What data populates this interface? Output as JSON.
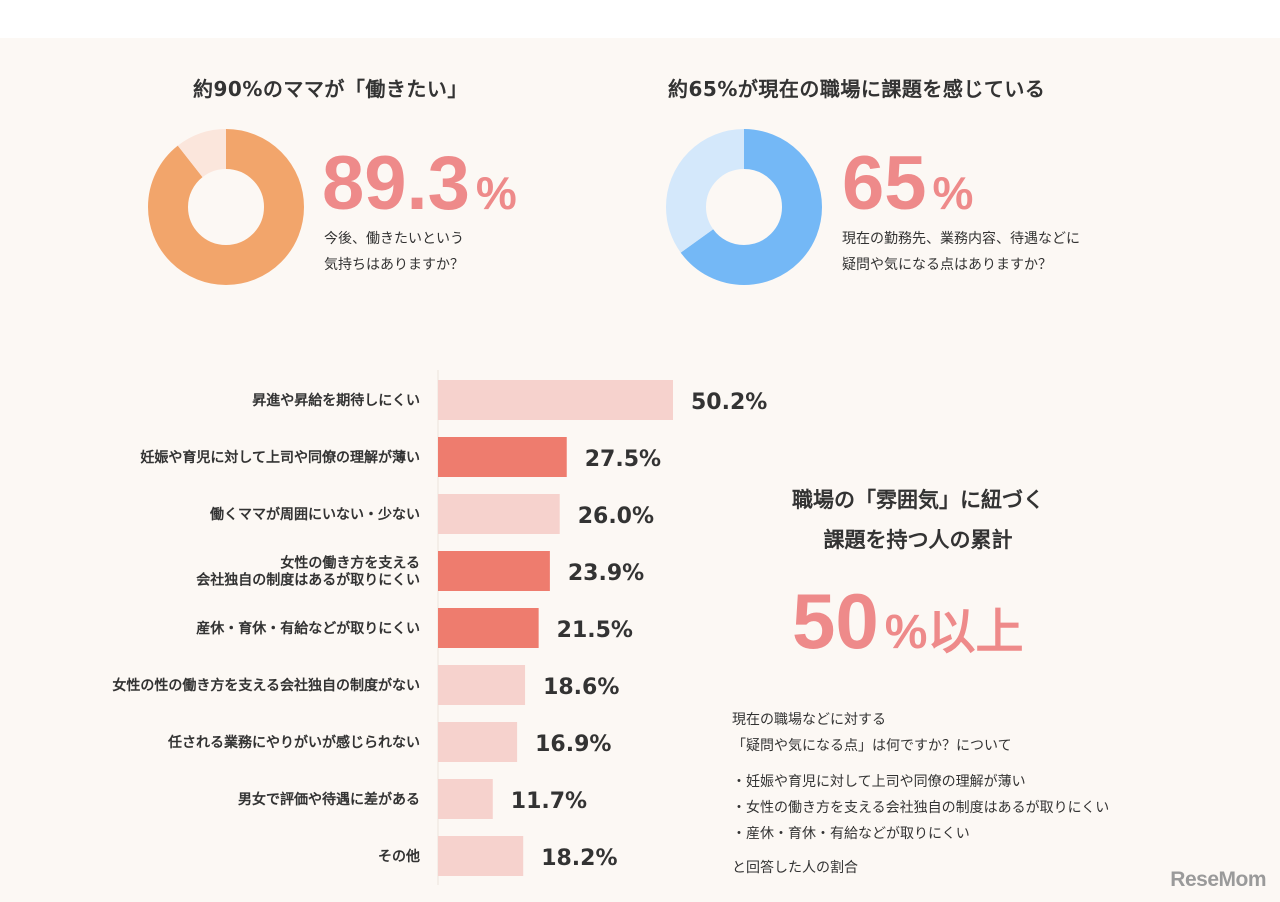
{
  "donut_left": {
    "title": "約90%のママが「働きたい」",
    "value_text": "89.3",
    "unit": "%",
    "desc_lines": [
      "今後、働きたいという",
      "気持ちはありますか？"
    ]
  },
  "donut_right": {
    "title": "約65%が現在の職場に課題を感じている",
    "value_text": "65",
    "unit": "%",
    "desc_lines": [
      "現在の勤務先、業務内容、待遇などに",
      "疑問や気になる点はありますか？"
    ]
  },
  "summary": {
    "title_lines": [
      "職場の「雰囲気」に紐づく",
      "課題を持つ人の累計"
    ],
    "big_value": "50",
    "big_unit": "%",
    "big_suffix": "以上",
    "note_lines": [
      "現在の職場などに対する",
      "「疑問や気になる点」は何ですか？について"
    ],
    "bullets": [
      "・妊娠や育児に対して上司や同僚の理解が薄い",
      "・女性の働き方を支える会社独自の制度はあるが取りにくい",
      "・産休・育休・有給などが取りにくい"
    ],
    "footer": "と回答した人の割合"
  },
  "logo": "ReseMom",
  "colors": {
    "orange": "#f2a56b",
    "orange_light": "#fbe6dc",
    "blue": "#74b8f6",
    "blue_light": "#d4e8fb",
    "pink_strong": "#ee7c6e",
    "pink_light": "#f6d2cd",
    "accent_text": "#ee8a8a"
  },
  "chart_data": [
    {
      "type": "pie",
      "title": "約90%のママが「働きたい」",
      "values": [
        89.3,
        10.7
      ],
      "colors": [
        "#f2a56b",
        "#fbe6dc"
      ]
    },
    {
      "type": "pie",
      "title": "約65%が現在の職場に課題を感じている",
      "values": [
        65,
        35
      ],
      "colors": [
        "#74b8f6",
        "#d4e8fb"
      ]
    },
    {
      "type": "bar",
      "orientation": "horizontal",
      "categories": [
        [
          "昇進や昇給を期待しにくい"
        ],
        [
          "妊娠や育児に対して上司や同僚の理解が薄い"
        ],
        [
          "働くママが周囲にいない・少ない"
        ],
        [
          "女性の働き方を支える",
          "会社独自の制度はあるが取りにくい"
        ],
        [
          "産休・育休・有給などが取りにくい"
        ],
        [
          "女性の性の働き方を支える会社独自の制度がない"
        ],
        [
          "任される業務にやりがいが感じられない"
        ],
        [
          "男女で評価や待遇に差がある"
        ],
        [
          "その他"
        ]
      ],
      "values": [
        50.2,
        27.5,
        26.0,
        23.9,
        21.5,
        18.6,
        16.9,
        11.7,
        18.2
      ],
      "value_labels": [
        "50.2%",
        "27.5%",
        "26.0%",
        "23.9%",
        "21.5%",
        "18.6%",
        "16.9%",
        "11.7%",
        "18.2%"
      ],
      "highlight": [
        false,
        true,
        false,
        true,
        true,
        false,
        false,
        false,
        false
      ],
      "xlim": [
        0,
        50.2
      ]
    }
  ]
}
